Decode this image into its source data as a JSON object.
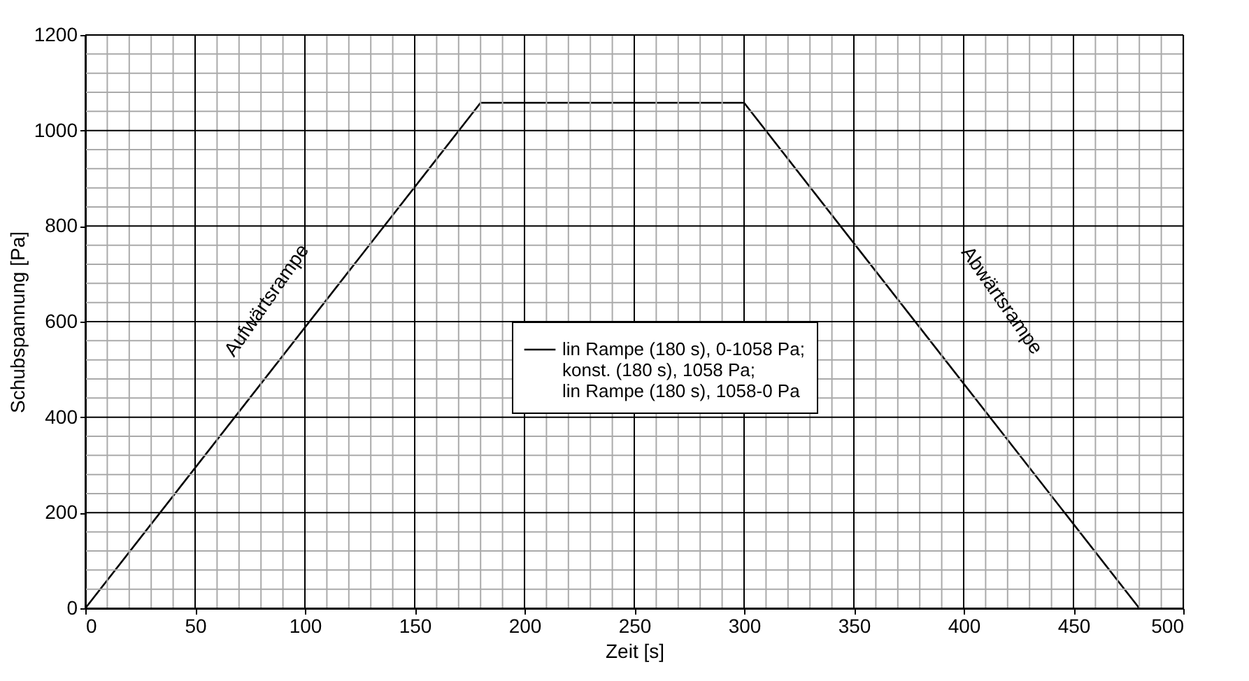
{
  "chart_data": {
    "type": "line",
    "xlabel": "Zeit [s]",
    "ylabel": "Schubspannung [Pa]",
    "x": [
      0,
      180,
      300,
      480
    ],
    "series": [
      {
        "name": "lin Rampe (180 s), 0-1058 Pa;\nkonst. (180 s), 1058 Pa;\nlin Rampe (180 s), 1058-0 Pa",
        "color": "#000000",
        "values": [
          0,
          1058,
          1058,
          0
        ]
      }
    ],
    "xlim": [
      0,
      500
    ],
    "ylim": [
      0,
      1200
    ],
    "xticks": [
      0,
      {
        "value": 10,
        "label": null
      },
      {
        "value": 20,
        "label": null
      },
      {
        "value": 30,
        "label": null
      },
      {
        "value": 40,
        "label": null
      },
      50,
      {
        "value": 60,
        "label": null
      },
      {
        "value": 70,
        "label": null
      },
      {
        "value": 80,
        "label": null
      },
      {
        "value": 90,
        "label": null
      },
      100,
      {
        "value": 110,
        "label": null
      },
      {
        "value": 120,
        "label": null
      },
      {
        "value": 130,
        "label": null
      },
      {
        "value": 140,
        "label": null
      },
      150,
      {
        "value": 160,
        "label": null
      },
      {
        "value": 170,
        "label": null
      },
      {
        "value": 180,
        "label": null
      },
      {
        "value": 190,
        "label": null
      },
      200,
      {
        "value": 210,
        "label": null
      },
      {
        "value": 220,
        "label": null
      },
      {
        "value": 230,
        "label": null
      },
      {
        "value": 240,
        "label": null
      },
      250,
      {
        "value": 260,
        "label": null
      },
      {
        "value": 270,
        "label": null
      },
      {
        "value": 280,
        "label": null
      },
      {
        "value": 290,
        "label": null
      },
      300,
      {
        "value": 310,
        "label": null
      },
      {
        "value": 320,
        "label": null
      },
      {
        "value": 330,
        "label": null
      },
      {
        "value": 340,
        "label": null
      },
      350,
      {
        "value": 360,
        "label": null
      },
      {
        "value": 370,
        "label": null
      },
      {
        "value": 380,
        "label": null
      },
      {
        "value": 390,
        "label": null
      },
      400,
      {
        "value": 410,
        "label": null
      },
      {
        "value": 420,
        "label": null
      },
      {
        "value": 430,
        "label": null
      },
      {
        "value": 440,
        "label": null
      },
      450,
      {
        "value": 460,
        "label": null
      },
      {
        "value": 470,
        "label": null
      },
      {
        "value": 480,
        "label": null
      },
      {
        "value": 490,
        "label": null
      },
      500
    ],
    "yticks": [
      0,
      {
        "value": 40,
        "label": null
      },
      {
        "value": 80,
        "label": null
      },
      {
        "value": 120,
        "label": null
      },
      {
        "value": 160,
        "label": null
      },
      200,
      {
        "value": 240,
        "label": null
      },
      {
        "value": 280,
        "label": null
      },
      {
        "value": 320,
        "label": null
      },
      {
        "value": 360,
        "label": null
      },
      400,
      {
        "value": 440,
        "label": null
      },
      {
        "value": 480,
        "label": null
      },
      {
        "value": 520,
        "label": null
      },
      {
        "value": 560,
        "label": null
      },
      600,
      {
        "value": 640,
        "label": null
      },
      {
        "value": 680,
        "label": null
      },
      {
        "value": 720,
        "label": null
      },
      {
        "value": 760,
        "label": null
      },
      800,
      {
        "value": 840,
        "label": null
      },
      {
        "value": 880,
        "label": null
      },
      {
        "value": 920,
        "label": null
      },
      {
        "value": 960,
        "label": null
      },
      1000,
      {
        "value": 1040,
        "label": null
      },
      {
        "value": 1080,
        "label": null
      },
      {
        "value": 1120,
        "label": null
      },
      {
        "value": 1160,
        "label": null
      },
      1200
    ],
    "grid": true,
    "legend": "center",
    "line_style": "solid",
    "marker": "none",
    "annotations": [
      "Aufwärtsrampe",
      "Abwärtsrampe"
    ]
  }
}
